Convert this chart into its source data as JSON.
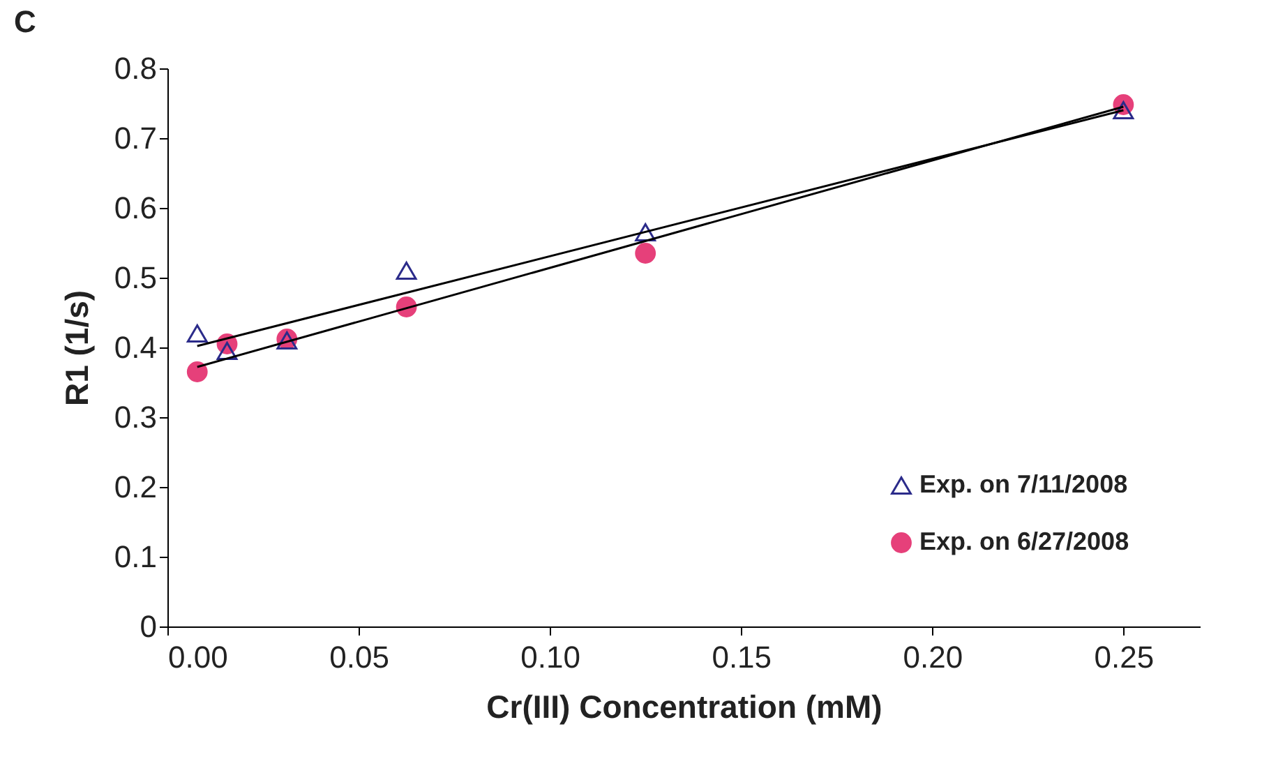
{
  "chart_data": {
    "type": "scatter",
    "title": "C",
    "xlabel": "Cr(III) Concentration (mM)",
    "ylabel": "R1 (1/s)",
    "xlim": [
      0,
      0.27
    ],
    "ylim": [
      0,
      0.8
    ],
    "xticks": [
      {
        "value": 0,
        "label": "0.00"
      },
      {
        "value": 0.05,
        "label": "0.05"
      },
      {
        "value": 0.1,
        "label": "0.10"
      },
      {
        "value": 0.15,
        "label": "0.15"
      },
      {
        "value": 0.2,
        "label": "0.20"
      },
      {
        "value": 0.25,
        "label": "0.25"
      }
    ],
    "yticks": [
      0,
      0.1,
      0.2,
      0.3,
      0.4,
      0.5,
      0.6,
      0.7,
      0.8
    ],
    "grid": false,
    "legend": "bottom right",
    "series": [
      {
        "name": "Exp. on 7/11/2008",
        "marker": "triangle",
        "color": "#2b2b8a",
        "x": [
          0.0078,
          0.0156,
          0.03125,
          0.0625,
          0.125,
          0.25
        ],
        "values": [
          0.42,
          0.395,
          0.41,
          0.51,
          0.565,
          0.74
        ]
      },
      {
        "name": "Exp. on 6/27/2008",
        "marker": "circle",
        "color": "#e6407a",
        "x": [
          0.0078,
          0.0156,
          0.03125,
          0.0625,
          0.125,
          0.25
        ],
        "values": [
          0.365,
          0.405,
          0.412,
          0.458,
          0.535,
          0.748
        ]
      },
      {
        "type": "line",
        "color": "#000000",
        "x": [
          0.0078,
          0.25
        ],
        "values": [
          0.402,
          0.74
        ]
      },
      {
        "type": "line",
        "color": "#000000",
        "x": [
          0.0078,
          0.25
        ],
        "values": [
          0.372,
          0.745
        ]
      }
    ]
  }
}
